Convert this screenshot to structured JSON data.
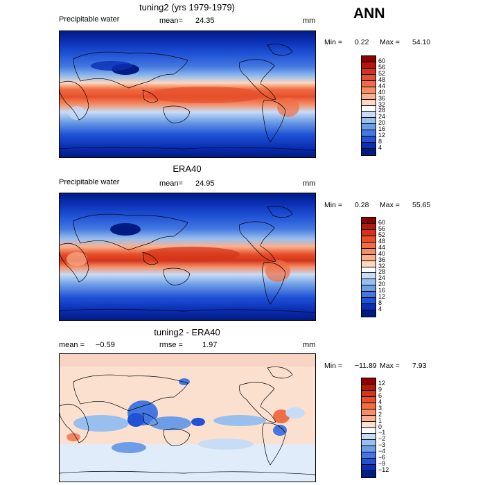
{
  "season": "ANN",
  "panels": [
    {
      "title": "tuning2 (yrs 1979-1979)",
      "left_label": "Precipitable water",
      "stat_label": "mean=",
      "stat_value": "24.35",
      "units": "mm",
      "min_label": "Min =",
      "min_value": "0.22",
      "max_label": "Max =",
      "max_value": "54.10",
      "colorbar": {
        "levels": [
          "60",
          "56",
          "52",
          "48",
          "44",
          "40",
          "36",
          "32",
          "28",
          "24",
          "20",
          "16",
          "12",
          "8",
          "4"
        ],
        "colors": [
          "#8b0000",
          "#b3180c",
          "#d4341a",
          "#e6502b",
          "#f06e45",
          "#f58e66",
          "#f9b18e",
          "#fcd8bd",
          "#ffffff",
          "#c8dcf5",
          "#99bfee",
          "#6d9de6",
          "#4478e0",
          "#1f52d6",
          "#0a2fb4",
          "#011b85"
        ]
      }
    },
    {
      "title": "ERA40",
      "left_label": "Precipitable water",
      "stat_label": "mean=",
      "stat_value": "24.95",
      "units": "mm",
      "min_label": "Min =",
      "min_value": "0.28",
      "max_label": "Max =",
      "max_value": "55.65",
      "colorbar": {
        "levels": [
          "60",
          "56",
          "52",
          "48",
          "44",
          "40",
          "36",
          "32",
          "28",
          "24",
          "20",
          "16",
          "12",
          "8",
          "4"
        ],
        "colors": [
          "#8b0000",
          "#b3180c",
          "#d4341a",
          "#e6502b",
          "#f06e45",
          "#f58e66",
          "#f9b18e",
          "#fcd8bd",
          "#ffffff",
          "#c8dcf5",
          "#99bfee",
          "#6d9de6",
          "#4478e0",
          "#1f52d6",
          "#0a2fb4",
          "#011b85"
        ]
      }
    },
    {
      "title": "tuning2 - ERA40",
      "left_label": "mean =",
      "left_value": "−0.59",
      "stat_label": "rmse =",
      "stat_value": "1.97",
      "units": "mm",
      "min_label": "Min =",
      "min_value": "−11.89",
      "max_label": "Max =",
      "max_value": "7.93",
      "colorbar": {
        "levels": [
          "12",
          "9",
          "6",
          "4",
          "3",
          "2",
          "1",
          "0",
          "−1",
          "−2",
          "−3",
          "−4",
          "−6",
          "−9",
          "−12"
        ],
        "colors": [
          "#8b0000",
          "#b3180c",
          "#d4341a",
          "#e6502b",
          "#f06e45",
          "#f58e66",
          "#f9b18e",
          "#fbe0d0",
          "#ffffff",
          "#c8dcf5",
          "#99bfee",
          "#6d9de6",
          "#4478e0",
          "#1f52d6",
          "#0a2fb4",
          "#011b85"
        ]
      }
    }
  ]
}
